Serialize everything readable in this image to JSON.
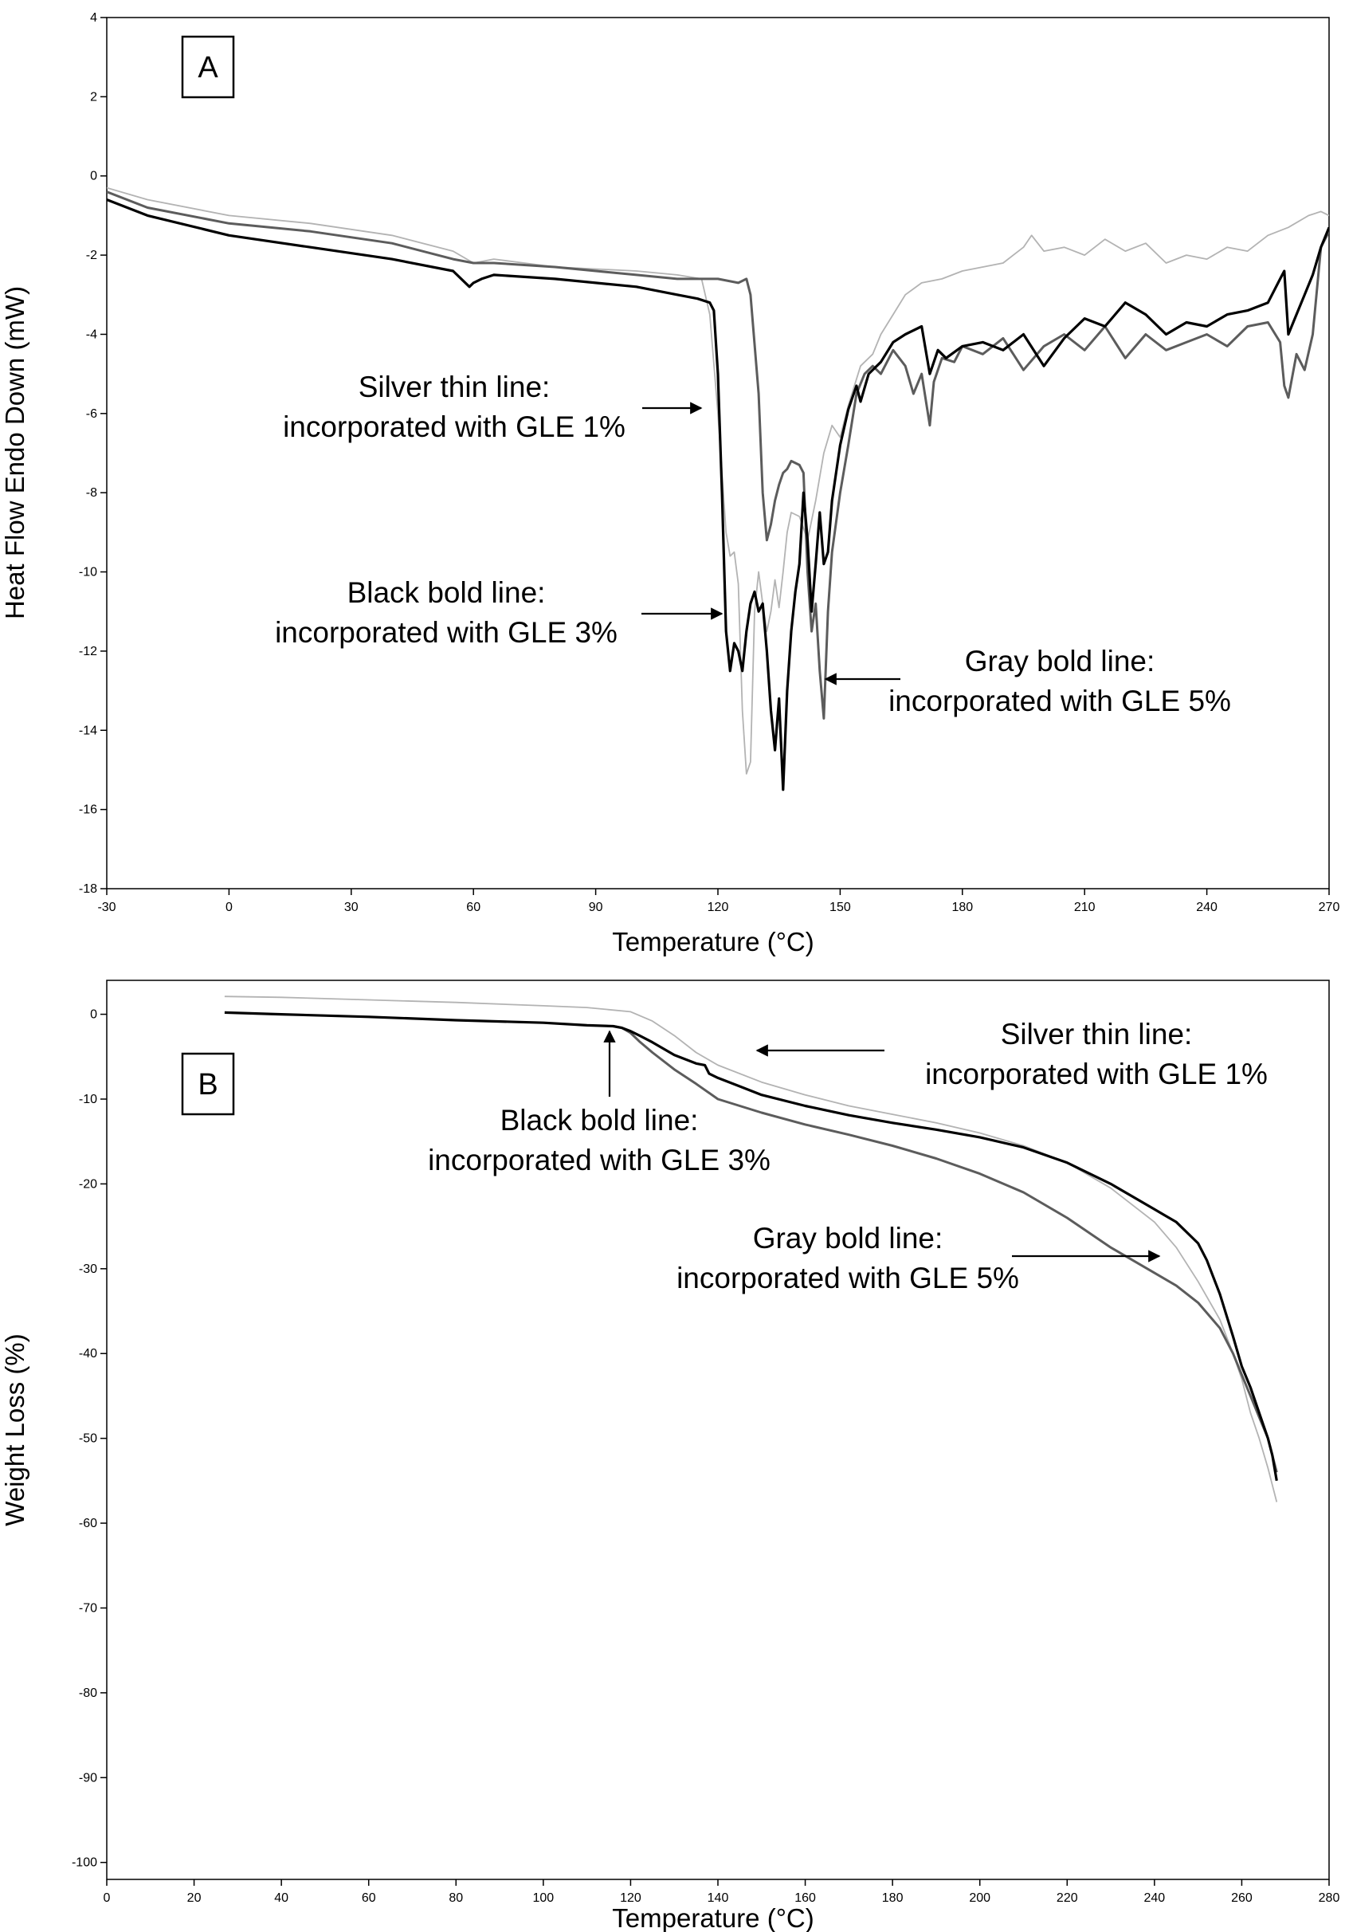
{
  "chart_data": [
    {
      "type": "line",
      "panel_label": "A",
      "xlabel": "Temperature (°C)",
      "ylabel": "Heat Flow Endo Down (mW)",
      "xlim": [
        -30,
        270
      ],
      "ylim": [
        -18,
        4
      ],
      "xticks": [
        -30,
        0,
        30,
        60,
        90,
        120,
        150,
        180,
        210,
        240,
        270
      ],
      "yticks": [
        4,
        2,
        0,
        -2,
        -4,
        -6,
        -8,
        -10,
        -12,
        -14,
        -16,
        -18
      ],
      "grid": false,
      "series": [
        {
          "key": "silver",
          "color": "#b3b3b3",
          "stroke_width": 1.8,
          "x": [
            -30,
            -20,
            0,
            20,
            40,
            55,
            60,
            65,
            80,
            100,
            110,
            116,
            118,
            120,
            121,
            122,
            123,
            124,
            125,
            126,
            127,
            128,
            129,
            130,
            131,
            132,
            133,
            134,
            135,
            136,
            137,
            138,
            140,
            142,
            144,
            146,
            148,
            150,
            152,
            155,
            158,
            160,
            163,
            166,
            170,
            175,
            180,
            185,
            190,
            195,
            197,
            200,
            205,
            210,
            215,
            220,
            225,
            230,
            235,
            240,
            245,
            250,
            255,
            260,
            265,
            268,
            270
          ],
          "y": [
            -0.3,
            -0.6,
            -1.0,
            -1.2,
            -1.5,
            -1.9,
            -2.2,
            -2.1,
            -2.3,
            -2.4,
            -2.5,
            -2.6,
            -3.5,
            -6.0,
            -7.5,
            -9.0,
            -9.6,
            -9.5,
            -10.3,
            -13.5,
            -15.1,
            -14.8,
            -11.0,
            -10.0,
            -10.8,
            -11.5,
            -11.0,
            -10.2,
            -10.9,
            -10.0,
            -9.0,
            -8.5,
            -8.6,
            -9.2,
            -8.2,
            -7.0,
            -6.3,
            -6.6,
            -5.8,
            -4.8,
            -4.5,
            -4.0,
            -3.5,
            -3.0,
            -2.7,
            -2.6,
            -2.4,
            -2.3,
            -2.2,
            -1.8,
            -1.5,
            -1.9,
            -1.8,
            -2.0,
            -1.6,
            -1.9,
            -1.7,
            -2.2,
            -2.0,
            -2.1,
            -1.8,
            -1.9,
            -1.5,
            -1.3,
            -1.0,
            -0.9,
            -1.0
          ]
        },
        {
          "key": "black",
          "color": "#000000",
          "stroke_width": 3.2,
          "x": [
            -30,
            -20,
            0,
            20,
            40,
            55,
            59,
            60,
            62,
            65,
            80,
            100,
            110,
            115,
            118,
            119,
            120,
            121,
            122,
            123,
            124,
            125,
            126,
            127,
            128,
            129,
            130,
            131,
            132,
            133,
            134,
            135,
            136,
            137,
            138,
            139,
            140,
            141,
            142,
            143,
            144,
            145,
            146,
            147,
            148,
            149,
            150,
            152,
            154,
            155,
            157,
            160,
            163,
            166,
            170,
            172,
            174,
            176,
            180,
            185,
            190,
            195,
            200,
            205,
            210,
            215,
            220,
            225,
            230,
            235,
            240,
            245,
            250,
            255,
            258,
            259,
            260,
            262,
            264,
            266,
            268,
            270
          ],
          "y": [
            -0.6,
            -1.0,
            -1.5,
            -1.8,
            -2.1,
            -2.4,
            -2.8,
            -2.7,
            -2.6,
            -2.5,
            -2.6,
            -2.8,
            -3.0,
            -3.1,
            -3.2,
            -3.4,
            -5.0,
            -8.0,
            -11.5,
            -12.5,
            -11.8,
            -12.0,
            -12.5,
            -11.5,
            -10.8,
            -10.5,
            -11.0,
            -10.8,
            -12.0,
            -13.5,
            -14.5,
            -13.2,
            -15.5,
            -13.0,
            -11.5,
            -10.5,
            -9.8,
            -8.0,
            -9.2,
            -11.0,
            -9.8,
            -8.5,
            -9.8,
            -9.5,
            -8.2,
            -7.5,
            -6.8,
            -5.9,
            -5.3,
            -5.7,
            -5.0,
            -4.7,
            -4.2,
            -4.0,
            -3.8,
            -5.0,
            -4.4,
            -4.6,
            -4.3,
            -4.2,
            -4.4,
            -4.0,
            -4.8,
            -4.1,
            -3.6,
            -3.8,
            -3.2,
            -3.5,
            -4.0,
            -3.7,
            -3.8,
            -3.5,
            -3.4,
            -3.2,
            -2.6,
            -2.4,
            -4.0,
            -3.5,
            -3.0,
            -2.5,
            -1.8,
            -1.3
          ]
        },
        {
          "key": "gray",
          "color": "#5c5c5c",
          "stroke_width": 3.0,
          "x": [
            -30,
            -20,
            0,
            20,
            40,
            55,
            60,
            65,
            80,
            100,
            110,
            120,
            125,
            127,
            128,
            130,
            131,
            132,
            133,
            134,
            135,
            136,
            137,
            138,
            140,
            141,
            142,
            143,
            144,
            145,
            146,
            147,
            148,
            150,
            152,
            154,
            156,
            158,
            160,
            163,
            166,
            168,
            170,
            172,
            173,
            175,
            178,
            180,
            185,
            190,
            195,
            200,
            205,
            210,
            215,
            220,
            225,
            230,
            235,
            240,
            245,
            250,
            255,
            258,
            259,
            260,
            262,
            264,
            266,
            268,
            270
          ],
          "y": [
            -0.4,
            -0.8,
            -1.2,
            -1.4,
            -1.7,
            -2.1,
            -2.2,
            -2.2,
            -2.3,
            -2.5,
            -2.6,
            -2.6,
            -2.7,
            -2.6,
            -3.0,
            -5.5,
            -8.0,
            -9.2,
            -8.8,
            -8.2,
            -7.8,
            -7.5,
            -7.4,
            -7.2,
            -7.3,
            -7.5,
            -10.0,
            -11.5,
            -10.8,
            -12.5,
            -13.7,
            -11.0,
            -9.5,
            -8.0,
            -6.8,
            -5.5,
            -5.0,
            -4.8,
            -5.0,
            -4.4,
            -4.8,
            -5.5,
            -5.0,
            -6.3,
            -5.2,
            -4.6,
            -4.7,
            -4.3,
            -4.5,
            -4.1,
            -4.9,
            -4.3,
            -4.0,
            -4.4,
            -3.8,
            -4.6,
            -4.0,
            -4.4,
            -4.2,
            -4.0,
            -4.3,
            -3.8,
            -3.7,
            -4.2,
            -5.3,
            -5.6,
            -4.5,
            -4.9,
            -4.0,
            -1.8,
            -1.4
          ]
        }
      ],
      "annotations": [
        {
          "key": "silver",
          "lines": [
            "Silver thin line:",
            "incorporated with GLE 1%"
          ]
        },
        {
          "key": "black",
          "lines": [
            "Black bold line:",
            "incorporated with GLE 3%"
          ]
        },
        {
          "key": "gray",
          "lines": [
            "Gray bold line:",
            "incorporated with GLE 5%"
          ]
        }
      ]
    },
    {
      "type": "line",
      "panel_label": "B",
      "xlabel": "Temperature (°C)",
      "ylabel": "Weight Loss (%)",
      "xlim": [
        0,
        280
      ],
      "ylim": [
        -102,
        4
      ],
      "xticks": [
        0,
        20,
        40,
        60,
        80,
        100,
        120,
        140,
        160,
        180,
        200,
        220,
        240,
        260,
        280
      ],
      "yticks": [
        0,
        -10,
        -20,
        -30,
        -40,
        -50,
        -60,
        -70,
        -80,
        -90,
        -100
      ],
      "grid": false,
      "series": [
        {
          "key": "silver",
          "color": "#b3b3b3",
          "stroke_width": 1.8,
          "x": [
            27,
            40,
            60,
            80,
            100,
            110,
            120,
            125,
            130,
            135,
            140,
            150,
            160,
            170,
            180,
            190,
            200,
            210,
            220,
            230,
            240,
            245,
            250,
            255,
            258,
            260,
            262,
            264,
            266,
            267,
            268
          ],
          "y": [
            2.1,
            2.0,
            1.7,
            1.4,
            1.0,
            0.8,
            0.3,
            -0.8,
            -2.5,
            -4.5,
            -6.0,
            -8.0,
            -9.5,
            -10.8,
            -11.8,
            -12.8,
            -14.0,
            -15.5,
            -17.5,
            -20.5,
            -24.5,
            -27.5,
            -31.5,
            -36.0,
            -40.0,
            -43.0,
            -47.0,
            -50.0,
            -53.5,
            -55.5,
            -57.5
          ]
        },
        {
          "key": "black",
          "color": "#000000",
          "stroke_width": 3.2,
          "x": [
            27,
            40,
            60,
            80,
            100,
            110,
            116,
            118,
            120,
            122,
            125,
            130,
            135,
            137,
            138,
            140,
            145,
            150,
            160,
            170,
            180,
            190,
            200,
            210,
            220,
            230,
            240,
            245,
            250,
            252,
            255,
            258,
            260,
            262,
            264,
            266,
            267,
            268
          ],
          "y": [
            0.2,
            0.0,
            -0.3,
            -0.7,
            -1.0,
            -1.3,
            -1.4,
            -1.6,
            -2.0,
            -2.5,
            -3.3,
            -4.8,
            -5.8,
            -6.0,
            -7.0,
            -7.5,
            -8.5,
            -9.5,
            -10.8,
            -11.9,
            -12.8,
            -13.6,
            -14.5,
            -15.7,
            -17.5,
            -20.0,
            -23.0,
            -24.5,
            -27.0,
            -29.0,
            -33.0,
            -38.0,
            -41.5,
            -44.0,
            -47.0,
            -50.0,
            -52.0,
            -55.0
          ]
        },
        {
          "key": "gray",
          "color": "#5c5c5c",
          "stroke_width": 3.0,
          "x": [
            116,
            118,
            120,
            122,
            125,
            130,
            135,
            140,
            150,
            160,
            170,
            180,
            190,
            200,
            210,
            220,
            230,
            240,
            245,
            250,
            255,
            258,
            260,
            262,
            264,
            266,
            267,
            268
          ],
          "y": [
            -1.4,
            -1.6,
            -2.2,
            -3.2,
            -4.5,
            -6.5,
            -8.2,
            -10.0,
            -11.6,
            -13.0,
            -14.2,
            -15.5,
            -17.0,
            -18.8,
            -21.0,
            -24.0,
            -27.5,
            -30.5,
            -32.0,
            -34.0,
            -37.0,
            -40.0,
            -42.5,
            -45.0,
            -47.5,
            -50.0,
            -52.0,
            -54.0
          ]
        }
      ],
      "annotations": [
        {
          "key": "silver",
          "lines": [
            "Silver thin line:",
            "incorporated with GLE 1%"
          ]
        },
        {
          "key": "black",
          "lines": [
            "Black bold line:",
            "incorporated with GLE 3%"
          ]
        },
        {
          "key": "gray",
          "lines": [
            "Gray bold line:",
            "incorporated with GLE 5%"
          ]
        }
      ]
    }
  ]
}
